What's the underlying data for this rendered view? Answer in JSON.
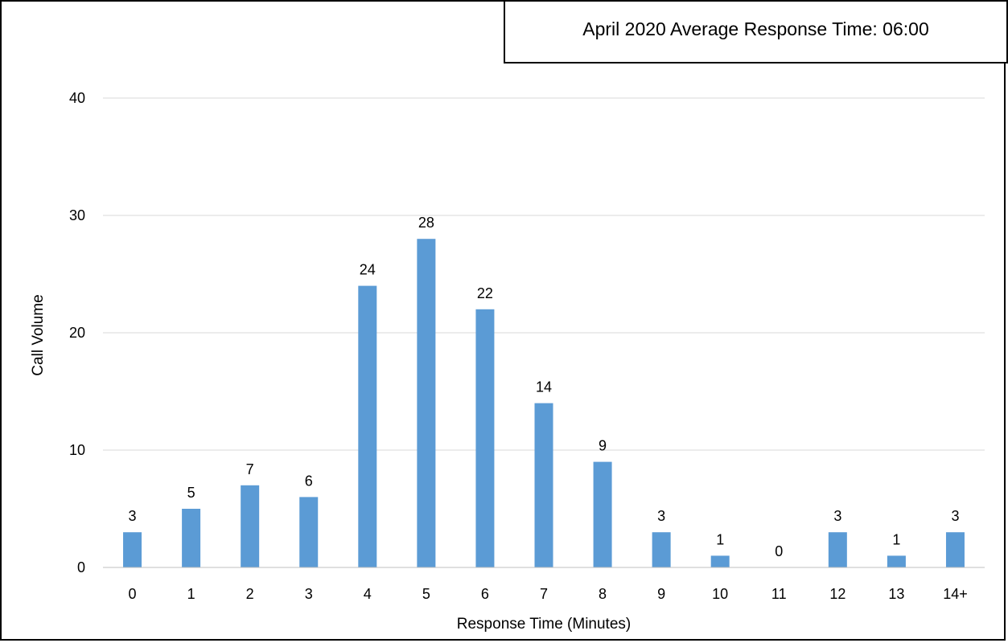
{
  "colors": {
    "bar": "#5b9bd5",
    "grid": "#d9d9d9",
    "axis": "#bfbfbf"
  },
  "chart_data": {
    "type": "bar",
    "title": "April 2020 Average Response Time: 06:00",
    "xlabel": "Response Time (Minutes)",
    "ylabel": "Call Volume",
    "categories": [
      "0",
      "1",
      "2",
      "3",
      "4",
      "5",
      "6",
      "7",
      "8",
      "9",
      "10",
      "11",
      "12",
      "13",
      "14+"
    ],
    "values": [
      3,
      5,
      7,
      6,
      24,
      28,
      22,
      14,
      9,
      3,
      1,
      0,
      3,
      1,
      3
    ],
    "ylim": [
      0,
      40
    ],
    "yticks": [
      0,
      10,
      20,
      30,
      40
    ],
    "grid": true,
    "data_labels": true
  }
}
